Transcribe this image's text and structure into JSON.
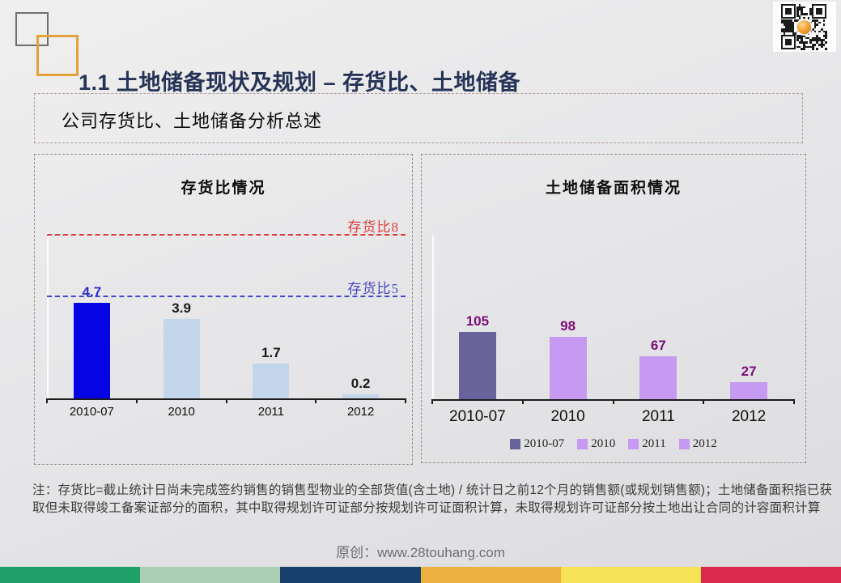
{
  "slide": {
    "title": "1.1 土地储备现状及规划 – 存货比、土地储备",
    "summary": "公司存货比、土地储备分析总述",
    "note": "注：存货比=截止统计日尚未完成签约销售的销售型物业的全部货值(含土地) / 统计日之前12个月的销售额(或规划销售额)；土地储备面积指已获取但未取得竣工备案证部分的面积，其中取得规划许可证部分按规划许可证面积计算，未取得规划许可证部分按土地出让合同的计容面积计算",
    "footer": "原创：www.28touhang.com"
  },
  "chart_data": [
    {
      "type": "bar",
      "title": "存货比情况",
      "categories": [
        "2010-07",
        "2010",
        "2011",
        "2012"
      ],
      "values": [
        4.7,
        3.9,
        1.7,
        0.2
      ],
      "ylim": [
        0,
        9.5
      ],
      "grid": false,
      "bar_colors": [
        "#0404e4",
        "#c3d6ec",
        "#c3d6ec",
        "#c3d6ec"
      ],
      "value_label_colors": [
        "#2a2ad2",
        "#1a1a1a",
        "#1a1a1a",
        "#1a1a1a"
      ],
      "ref_lines": [
        {
          "value": 8,
          "label": "存货比8",
          "color": "#e23b3e"
        },
        {
          "value": 5,
          "label": "存货比5",
          "color": "#4646c8"
        }
      ]
    },
    {
      "type": "bar",
      "title": "土地储备面积情况",
      "categories": [
        "2010-07",
        "2010",
        "2011",
        "2012"
      ],
      "values": [
        105,
        98,
        67,
        27
      ],
      "ylim": [
        0,
        128
      ],
      "grid": false,
      "bar_colors": [
        "#69639b",
        "#c69af0",
        "#c69af0",
        "#c69af0"
      ],
      "value_label_colors": [
        "#7c0d7c",
        "#7c0d7c",
        "#7c0d7c",
        "#7c0d7c"
      ],
      "legend": [
        {
          "label": "2010-07",
          "color": "#69639b"
        },
        {
          "label": "2010",
          "color": "#c69af0"
        },
        {
          "label": "2011",
          "color": "#c69af0"
        },
        {
          "label": "2012",
          "color": "#c69af0"
        }
      ],
      "legend_position": "bottom"
    }
  ],
  "decor": {
    "qr_name": "wechat-qr-code",
    "stripe_colors": [
      "#1fa069",
      "#abceb5",
      "#17416d",
      "#ecb041",
      "#f6e456",
      "#d92a4b"
    ]
  }
}
